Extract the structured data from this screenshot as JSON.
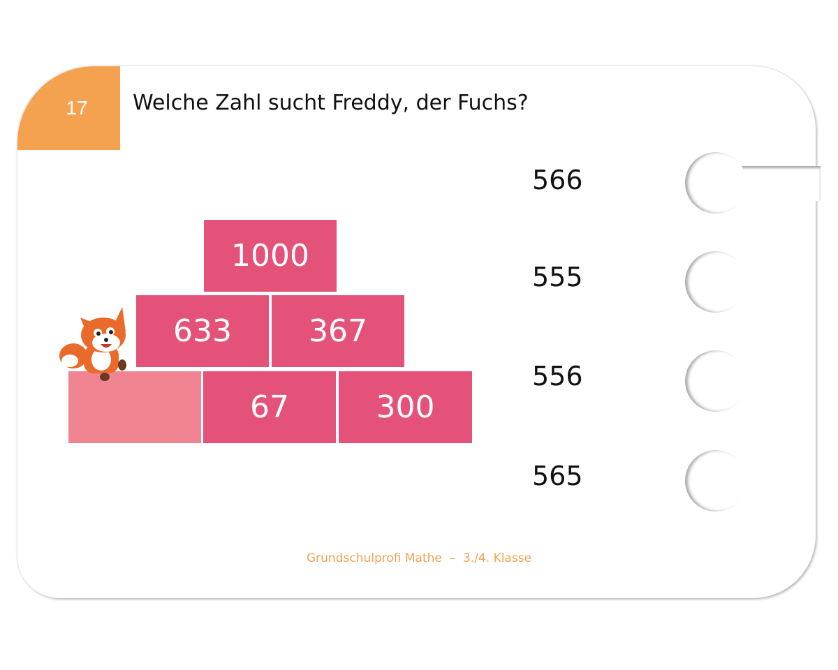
{
  "card": {
    "number": "17",
    "question": "Welche Zahl sucht Freddy, der Fuchs?",
    "pyramid": {
      "top": [
        1000
      ],
      "middle": [
        633,
        367
      ],
      "bottom": [
        67,
        300
      ]
    },
    "options": [
      566,
      555,
      556,
      565
    ],
    "footer": "Grundschulprofi Mathe  –  3./4. Klasse"
  }
}
